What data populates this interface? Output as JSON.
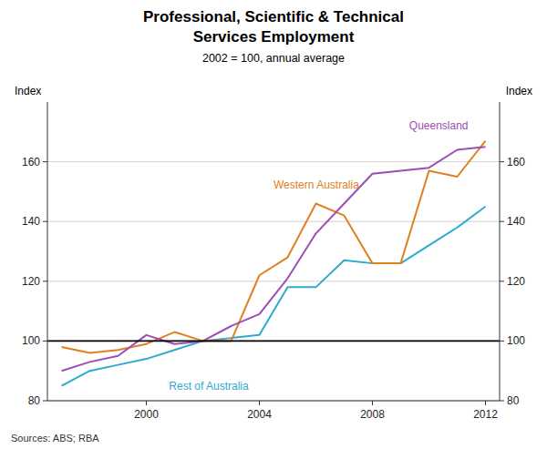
{
  "chart_data": {
    "type": "line",
    "title": [
      "Professional, Scientific & Technical",
      "Services Employment"
    ],
    "subtitle": "2002 = 100, annual average",
    "ylabel": "Index",
    "y2label": "Index",
    "source": "Sources: ABS; RBA",
    "x": [
      1997,
      1998,
      1999,
      2000,
      2001,
      2002,
      2003,
      2004,
      2005,
      2006,
      2007,
      2008,
      2009,
      2010,
      2011,
      2012
    ],
    "xlim": [
      1996.5,
      2012.5
    ],
    "xticks": [
      2000,
      2004,
      2008,
      2012
    ],
    "ylim": [
      80,
      180
    ],
    "yticks": [
      80,
      100,
      120,
      140,
      160
    ],
    "y2lim": [
      80,
      180
    ],
    "y2ticks": [
      80,
      100,
      120,
      140,
      160
    ],
    "grid": true,
    "reference_line": {
      "value": 100,
      "color": "#000000"
    },
    "series": [
      {
        "name": "Rest of Australia",
        "color": "#2EAACF",
        "values": [
          85,
          90,
          92,
          94,
          97,
          100,
          101,
          102,
          118,
          118,
          127,
          126,
          126,
          132,
          138,
          145
        ],
        "label_x": 2000.8,
        "label_y": 87
      },
      {
        "name": "Western Australia",
        "color": "#E08020",
        "values": [
          98,
          96,
          97,
          99,
          103,
          100,
          100,
          122,
          128,
          146,
          142,
          126,
          126,
          157,
          155,
          167
        ],
        "label_x": 2004.5,
        "label_y": 150
      },
      {
        "name": "Queensland",
        "color": "#9B4DB8",
        "values": [
          90,
          93,
          95,
          102,
          99,
          100,
          105,
          109,
          121,
          136,
          146,
          156,
          157,
          158,
          164,
          165
        ],
        "label_x": 2009.3,
        "label_y": 170
      }
    ]
  }
}
